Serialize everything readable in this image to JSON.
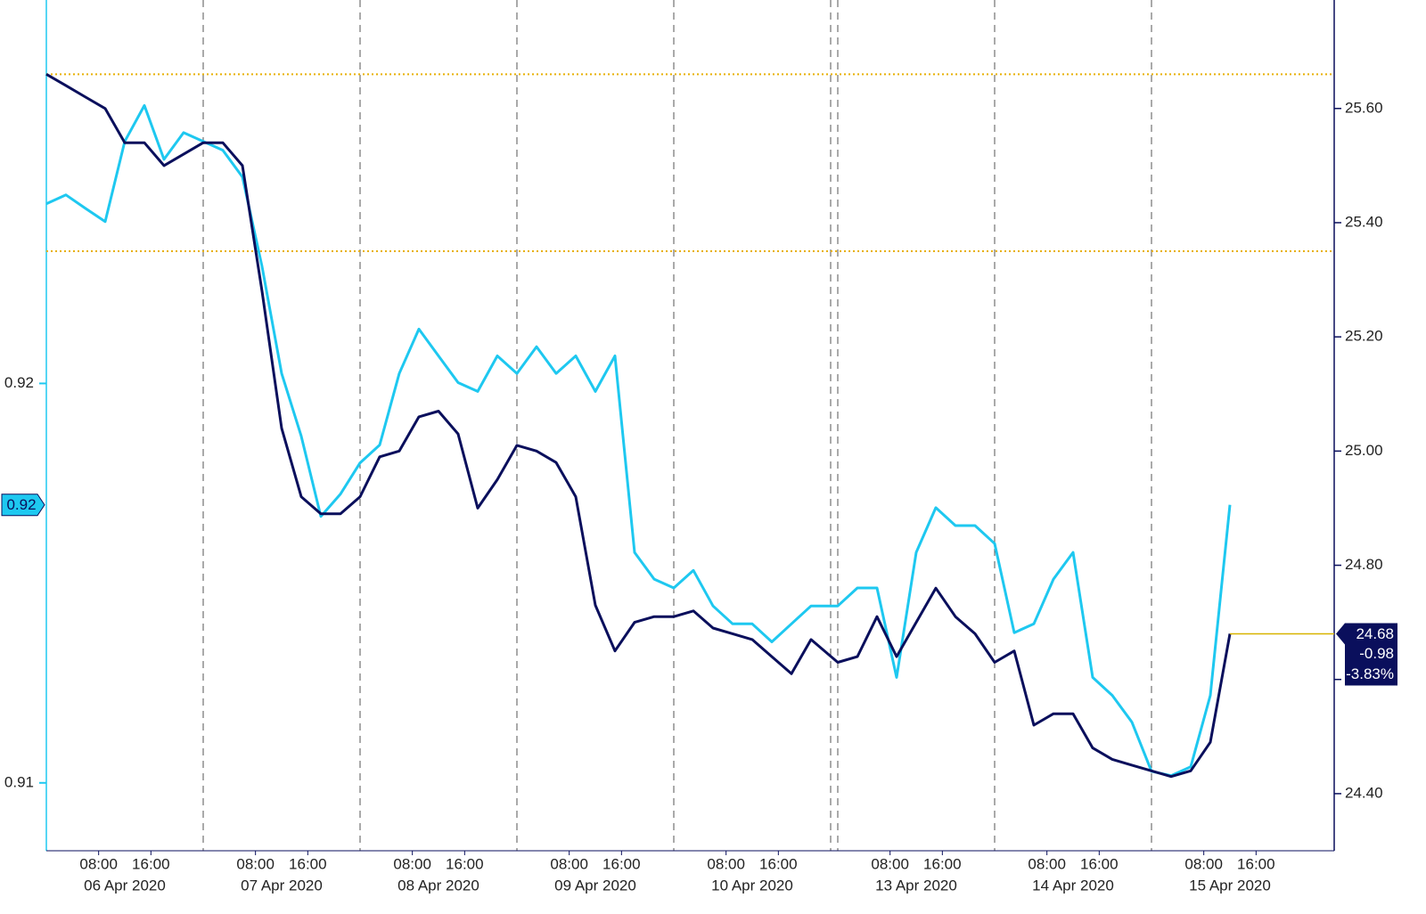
{
  "chart_data": {
    "type": "line",
    "x": [
      "2020-04-06 00:00",
      "2020-04-06 03:00",
      "2020-04-06 06:00",
      "2020-04-06 09:00",
      "2020-04-06 12:00",
      "2020-04-06 15:00",
      "2020-04-06 18:00",
      "2020-04-06 21:00",
      "2020-04-07 00:00",
      "2020-04-07 03:00",
      "2020-04-07 06:00",
      "2020-04-07 09:00",
      "2020-04-07 12:00",
      "2020-04-07 15:00",
      "2020-04-07 18:00",
      "2020-04-07 21:00",
      "2020-04-08 00:00",
      "2020-04-08 03:00",
      "2020-04-08 06:00",
      "2020-04-08 09:00",
      "2020-04-08 12:00",
      "2020-04-08 15:00",
      "2020-04-08 18:00",
      "2020-04-08 21:00",
      "2020-04-09 00:00",
      "2020-04-09 03:00",
      "2020-04-09 06:00",
      "2020-04-09 09:00",
      "2020-04-09 12:00",
      "2020-04-09 15:00",
      "2020-04-09 18:00",
      "2020-04-09 21:00",
      "2020-04-10 00:00",
      "2020-04-10 03:00",
      "2020-04-10 06:00",
      "2020-04-10 09:00",
      "2020-04-10 12:00",
      "2020-04-10 15:00",
      "2020-04-10 18:00",
      "2020-04-10 21:00",
      "2020-04-13 00:00",
      "2020-04-13 03:00",
      "2020-04-13 06:00",
      "2020-04-13 09:00",
      "2020-04-13 12:00",
      "2020-04-13 15:00",
      "2020-04-13 18:00",
      "2020-04-13 21:00",
      "2020-04-14 00:00",
      "2020-04-14 03:00",
      "2020-04-14 06:00",
      "2020-04-14 09:00",
      "2020-04-14 12:00",
      "2020-04-14 15:00",
      "2020-04-14 18:00",
      "2020-04-14 21:00",
      "2020-04-15 00:00",
      "2020-04-15 03:00",
      "2020-04-15 06:00",
      "2020-04-15 09:00",
      "2020-04-15 12:00"
    ],
    "day_labels": [
      "06 Apr 2020",
      "07 Apr 2020",
      "08 Apr 2020",
      "09 Apr 2020",
      "10 Apr 2020",
      "13 Apr 2020",
      "14 Apr 2020",
      "15 Apr 2020"
    ],
    "xticks": [
      {
        "value": "2020-04-06 08:00",
        "label": "08:00"
      },
      {
        "value": "2020-04-06 16:00",
        "label": "16:00"
      },
      {
        "value": "2020-04-07 08:00",
        "label": "08:00"
      },
      {
        "value": "2020-04-07 16:00",
        "label": "16:00"
      },
      {
        "value": "2020-04-08 08:00",
        "label": "08:00"
      },
      {
        "value": "2020-04-08 16:00",
        "label": "16:00"
      },
      {
        "value": "2020-04-09 08:00",
        "label": "08:00"
      },
      {
        "value": "2020-04-09 16:00",
        "label": "16:00"
      },
      {
        "value": "2020-04-10 08:00",
        "label": "08:00"
      },
      {
        "value": "2020-04-10 16:00",
        "label": "16:00"
      },
      {
        "value": "2020-04-13 08:00",
        "label": "08:00"
      },
      {
        "value": "2020-04-13 16:00",
        "label": "16:00"
      },
      {
        "value": "2020-04-14 08:00",
        "label": "08:00"
      },
      {
        "value": "2020-04-14 16:00",
        "label": "16:00"
      },
      {
        "value": "2020-04-15 08:00",
        "label": "08:00"
      },
      {
        "value": "2020-04-15 16:00",
        "label": "16:00"
      }
    ],
    "ylim": [
      0.9083,
      0.9296
    ],
    "yticks": [
      0.91,
      0.92
    ],
    "y2lim": [
      24.3,
      25.79
    ],
    "y2ticks": [
      {
        "value": 24.4,
        "label": "24.40"
      },
      {
        "value": 24.6,
        "label": "24.60"
      },
      {
        "value": 24.8,
        "label": "24.80"
      },
      {
        "value": 25.0,
        "label": "25.00"
      },
      {
        "value": 25.2,
        "label": "25.20"
      },
      {
        "value": 25.4,
        "label": "25.40"
      },
      {
        "value": 25.6,
        "label": "25.60"
      }
    ],
    "hlines": [
      {
        "value": 25.66,
        "axis": "y2",
        "color": "#e8b000"
      },
      {
        "value": 25.35,
        "axis": "y2",
        "color": "#e8b000"
      }
    ],
    "series": [
      {
        "color": "#1ec8f0",
        "axis": "y",
        "values": [
          0.9245,
          0.92472,
          0.92438,
          0.92405,
          0.92606,
          0.92696,
          0.92561,
          0.92628,
          0.92606,
          0.92584,
          0.92517,
          0.92293,
          0.92025,
          0.91868,
          0.91667,
          0.91723,
          0.91801,
          0.91846,
          0.92025,
          0.92136,
          0.92069,
          0.92002,
          0.9198,
          0.92069,
          0.92025,
          0.92092,
          0.92025,
          0.92069,
          0.9198,
          0.92069,
          0.91577,
          0.9151,
          0.91488,
          0.91532,
          0.91443,
          0.91398,
          0.91398,
          0.91353,
          0.91398,
          0.91443,
          0.91443,
          0.91488,
          0.91488,
          0.91264,
          0.91577,
          0.91689,
          0.91644,
          0.91644,
          0.91599,
          0.91376,
          0.91398,
          0.9151,
          0.91577,
          0.91264,
          0.91219,
          0.91152,
          0.91029,
          0.91018,
          0.9104,
          0.91219,
          0.91696
        ],
        "value_labels": [
          null,
          null,
          null,
          null,
          null,
          null,
          null,
          null,
          null,
          null,
          null,
          null,
          null,
          null,
          null,
          null,
          null,
          null,
          null,
          null,
          null,
          null,
          null,
          null,
          null,
          null,
          null,
          null,
          null,
          null,
          null,
          null,
          null,
          null,
          null,
          null,
          null,
          null,
          null,
          null,
          null,
          null,
          null,
          null,
          null,
          null,
          null,
          null,
          null,
          null,
          null,
          null,
          null,
          null,
          null,
          null,
          null,
          null,
          null,
          null,
          "0.92"
        ]
      },
      {
        "color": "#0a0f5c",
        "axis": "y2",
        "values": [
          25.66,
          25.64,
          25.62,
          25.6,
          25.54,
          25.54,
          25.5,
          25.52,
          25.54,
          25.54,
          25.5,
          25.28,
          25.04,
          24.92,
          24.89,
          24.89,
          24.92,
          24.99,
          25.0,
          25.06,
          25.07,
          25.03,
          24.9,
          24.95,
          25.01,
          25.0,
          24.98,
          24.92,
          24.73,
          24.65,
          24.7,
          24.71,
          24.71,
          24.72,
          24.69,
          24.68,
          24.67,
          24.64,
          24.61,
          24.67,
          24.63,
          24.64,
          24.71,
          24.64,
          24.7,
          24.76,
          24.71,
          24.68,
          24.63,
          24.65,
          24.52,
          24.54,
          24.54,
          24.48,
          24.46,
          24.45,
          24.44,
          24.43,
          24.44,
          24.49,
          24.68
        ],
        "change": -0.98,
        "change_pct": {
          "value": -3.83,
          "label": "-3.83%"
        }
      }
    ]
  }
}
